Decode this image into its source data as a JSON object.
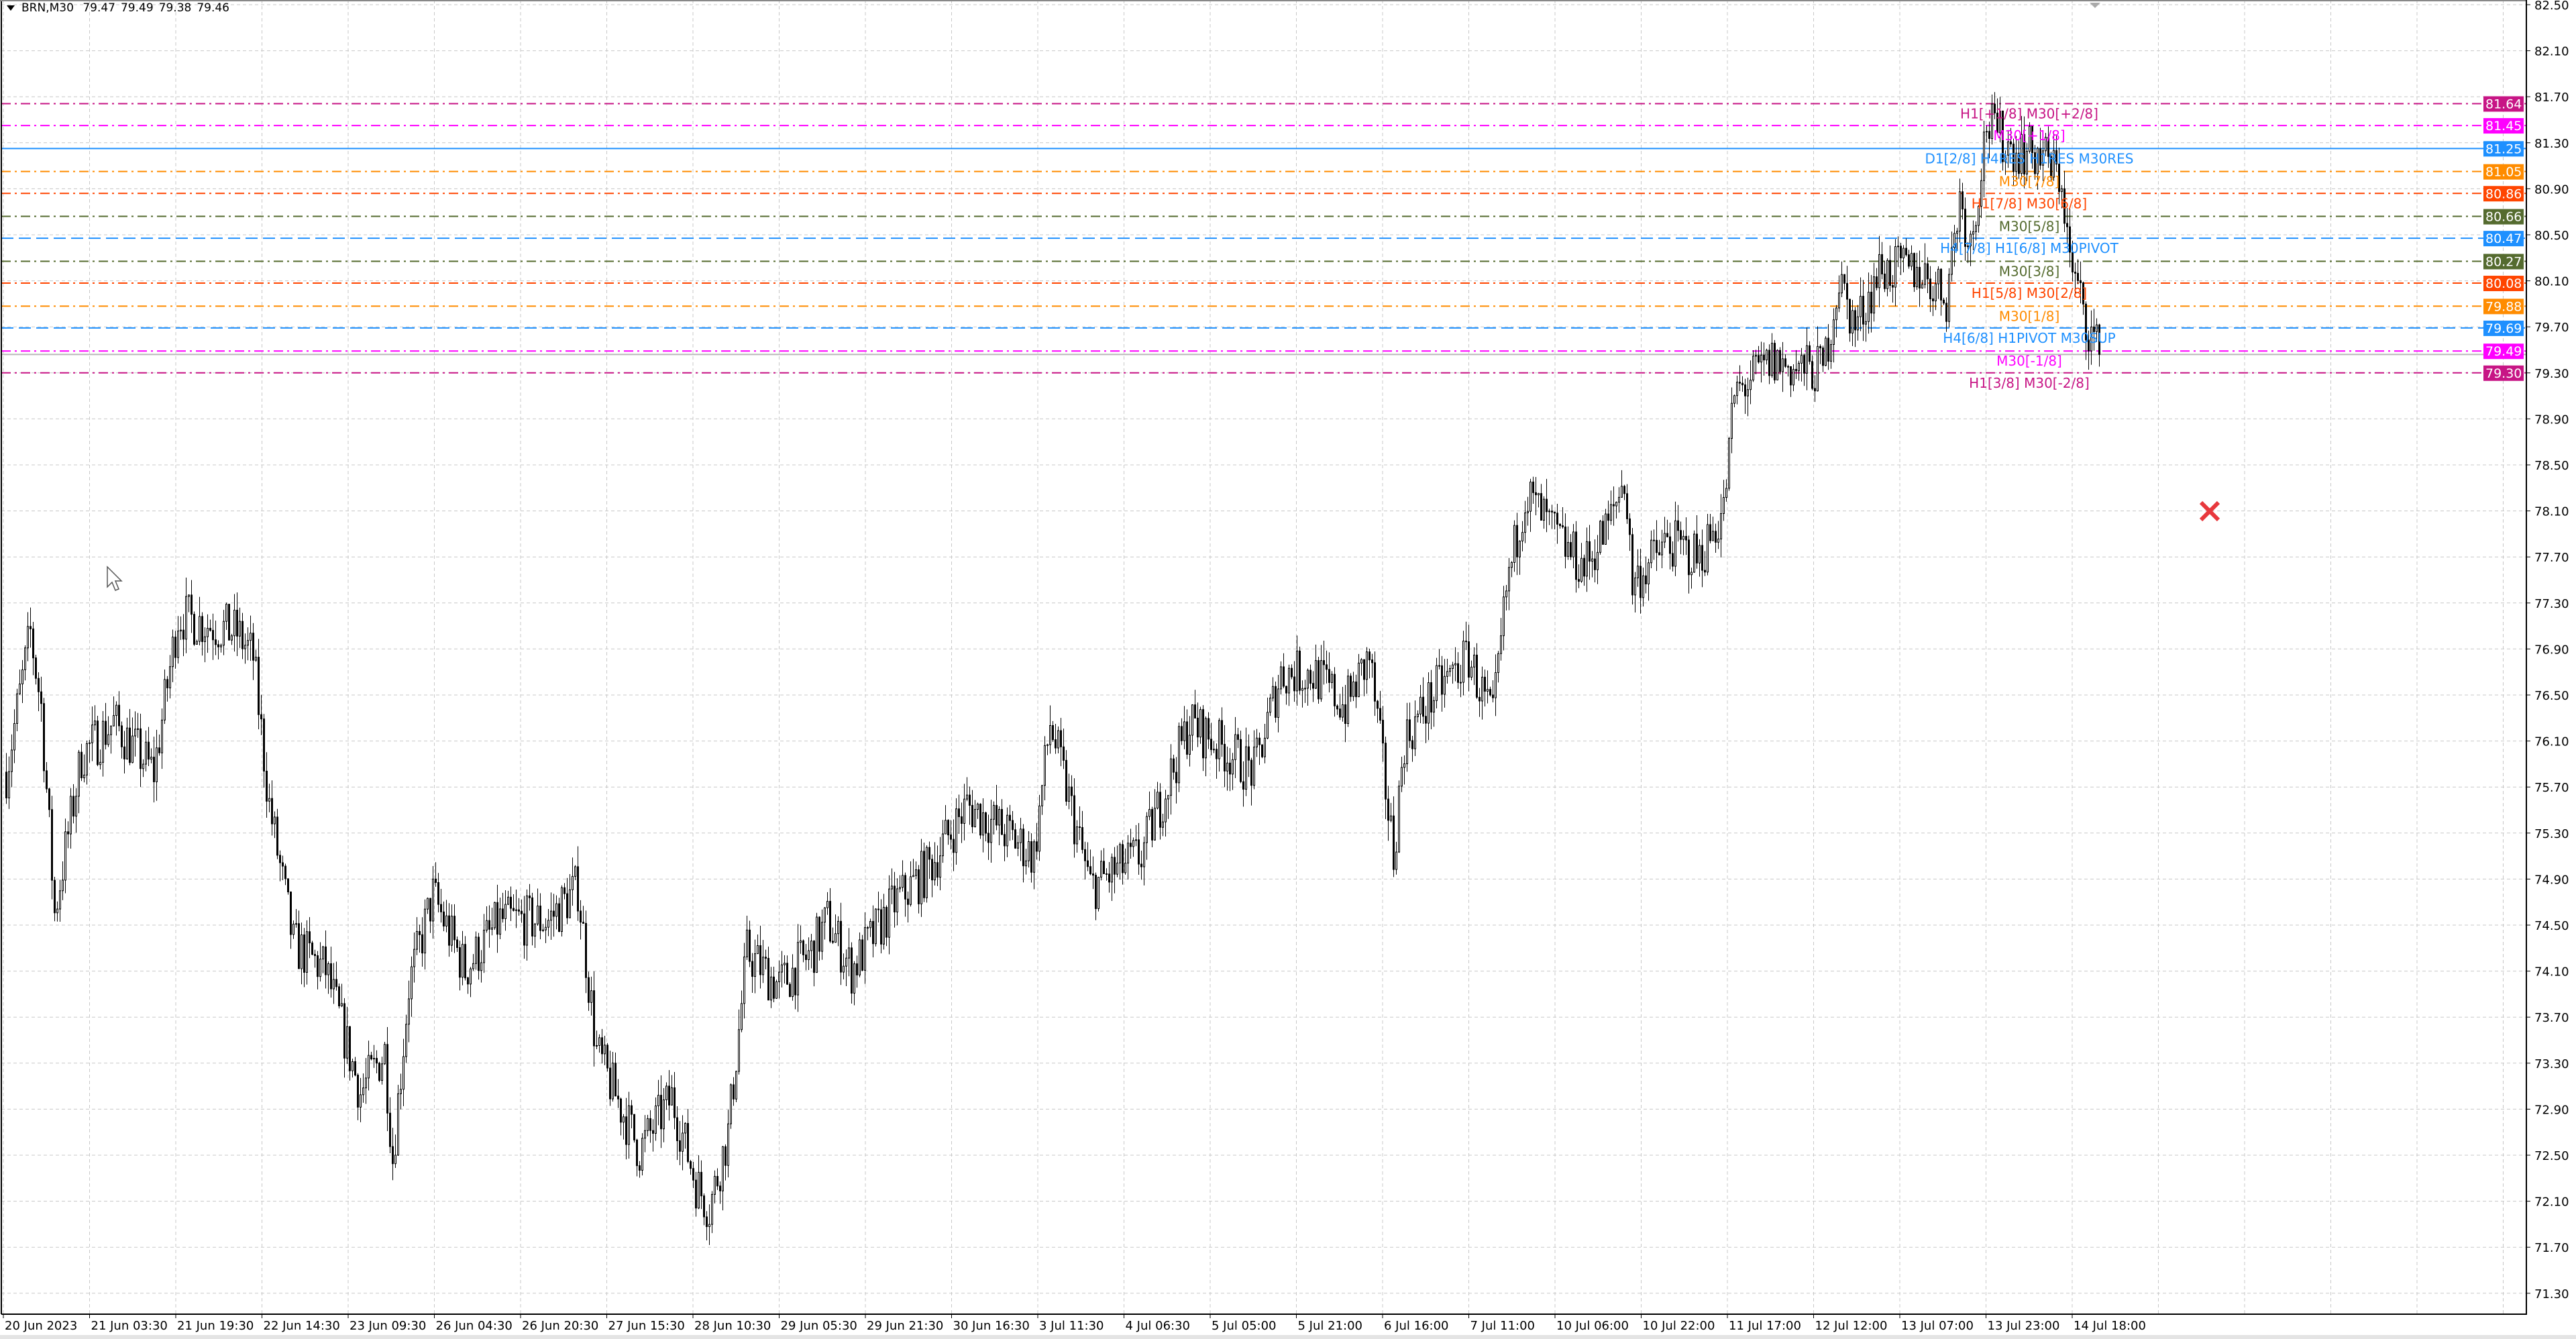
{
  "header": {
    "symbol": "BRN,M30",
    "open": "79.47",
    "high": "79.49",
    "low": "79.38",
    "close": "79.46"
  },
  "chart_data": {
    "type": "candlestick",
    "symbol": "BRN",
    "timeframe": "M30",
    "ylim": [
      71.12,
      82.5
    ],
    "grid": true,
    "y_ticks": [
      "82.50",
      "82.10",
      "81.70",
      "81.30",
      "80.90",
      "80.50",
      "80.10",
      "79.70",
      "79.30",
      "78.90",
      "78.50",
      "78.10",
      "77.70",
      "77.30",
      "76.90",
      "76.50",
      "76.10",
      "75.70",
      "75.30",
      "74.90",
      "74.50",
      "74.10",
      "73.70",
      "73.30",
      "72.90",
      "72.50",
      "72.10",
      "71.70",
      "71.30"
    ],
    "x_ticks": [
      "20 Jun 2023",
      "21 Jun 03:30",
      "21 Jun 19:30",
      "22 Jun 14:30",
      "23 Jun 09:30",
      "26 Jun 04:30",
      "26 Jun 20:30",
      "27 Jun 15:30",
      "28 Jun 10:30",
      "29 Jun 05:30",
      "29 Jun 21:30",
      "30 Jun 16:30",
      "3 Jul 11:30",
      "4 Jul 06:30",
      "5 Jul 05:00",
      "5 Jul 21:00",
      "6 Jul 16:00",
      "7 Jul 11:00",
      "10 Jul 06:00",
      "10 Jul 22:00",
      "11 Jul 17:00",
      "12 Jul 12:00",
      "13 Jul 07:00",
      "13 Jul 23:00",
      "14 Jul 18:00"
    ],
    "price_path": [
      [
        0,
        75.83
      ],
      [
        9,
        77.04
      ],
      [
        13,
        76.4
      ],
      [
        18,
        74.6
      ],
      [
        28,
        75.97
      ],
      [
        40,
        76.26
      ],
      [
        55,
        75.83
      ],
      [
        64,
        77.19
      ],
      [
        86,
        77.04
      ],
      [
        92,
        76.83
      ],
      [
        98,
        75.54
      ],
      [
        107,
        74.33
      ],
      [
        119,
        74.11
      ],
      [
        132,
        73.04
      ],
      [
        141,
        73.4
      ],
      [
        144,
        72.47
      ],
      [
        150,
        73.97
      ],
      [
        159,
        74.76
      ],
      [
        171,
        74.11
      ],
      [
        184,
        74.54
      ],
      [
        202,
        74.54
      ],
      [
        213,
        74.83
      ],
      [
        220,
        73.4
      ],
      [
        236,
        72.54
      ],
      [
        248,
        73.0
      ],
      [
        257,
        72.26
      ],
      [
        262,
        72.04
      ],
      [
        269,
        72.69
      ],
      [
        276,
        74.26
      ],
      [
        288,
        73.97
      ],
      [
        300,
        74.26
      ],
      [
        306,
        74.54
      ],
      [
        315,
        74.11
      ],
      [
        331,
        74.69
      ],
      [
        343,
        74.97
      ],
      [
        358,
        75.54
      ],
      [
        367,
        75.4
      ],
      [
        383,
        75.11
      ],
      [
        389,
        76.26
      ],
      [
        398,
        75.4
      ],
      [
        404,
        74.83
      ],
      [
        423,
        75.11
      ],
      [
        441,
        76.26
      ],
      [
        465,
        75.83
      ],
      [
        475,
        76.69
      ],
      [
        487,
        76.69
      ],
      [
        499,
        76.4
      ],
      [
        508,
        76.83
      ],
      [
        517,
        75.11
      ],
      [
        521,
        76.11
      ],
      [
        533,
        76.54
      ],
      [
        545,
        76.83
      ],
      [
        554,
        76.26
      ],
      [
        559,
        77.4
      ],
      [
        566,
        78.26
      ],
      [
        579,
        77.83
      ],
      [
        588,
        77.61
      ],
      [
        597,
        77.97
      ],
      [
        603,
        78.4
      ],
      [
        606,
        77.47
      ],
      [
        619,
        77.83
      ],
      [
        631,
        77.69
      ],
      [
        640,
        78.11
      ],
      [
        644,
        79.11
      ],
      [
        658,
        79.4
      ],
      [
        668,
        79.33
      ],
      [
        677,
        79.33
      ],
      [
        683,
        80.11
      ],
      [
        689,
        79.69
      ],
      [
        698,
        80.19
      ],
      [
        713,
        80.19
      ],
      [
        723,
        79.97
      ],
      [
        728,
        80.83
      ],
      [
        732,
        80.4
      ],
      [
        738,
        81.47
      ],
      [
        747,
        81.26
      ],
      [
        759,
        81.19
      ],
      [
        766,
        80.97
      ],
      [
        769,
        80.26
      ],
      [
        775,
        79.76
      ],
      [
        780,
        79.46
      ]
    ],
    "bid": 79.46,
    "levels": [
      {
        "price": 81.64,
        "label": "H1[+1/8] M30[+2/8]",
        "color": "#c71585",
        "style": "dashdot"
      },
      {
        "price": 81.45,
        "label": "M30[+1/8]",
        "color": "#ff00ff",
        "style": "dashdot"
      },
      {
        "price": 81.25,
        "label": "D1[2/8] H4RES H1RES M30RES",
        "color": "#1e90ff",
        "style": "solid"
      },
      {
        "price": 81.05,
        "label": "M30[7/8]",
        "color": "#ff8c00",
        "style": "dashdot"
      },
      {
        "price": 80.86,
        "label": "H1[7/8] M30[6/8]",
        "color": "#ff4500",
        "style": "dashdot"
      },
      {
        "price": 80.66,
        "label": "M30[5/8]",
        "color": "#556b2f",
        "style": "dashdot"
      },
      {
        "price": 80.47,
        "label": "H4[7/8] H1[6/8] M30PIVOT",
        "color": "#1e90ff",
        "style": "dash"
      },
      {
        "price": 80.27,
        "label": "M30[3/8]",
        "color": "#556b2f",
        "style": "dashdot"
      },
      {
        "price": 80.08,
        "label": "H1[5/8] M30[2/8]",
        "color": "#ff4500",
        "style": "dashdot"
      },
      {
        "price": 79.88,
        "label": "M30[1/8]",
        "color": "#ff8c00",
        "style": "dashdot"
      },
      {
        "price": 79.69,
        "label": "H4[6/8] H1PIVOT M30SUP",
        "color": "#1e90ff",
        "style": "dash"
      },
      {
        "price": 79.49,
        "label": "M30[-1/8]",
        "color": "#ff00ff",
        "style": "dashdot"
      },
      {
        "price": 79.3,
        "label": "H1[3/8] M30[-2/8]",
        "color": "#c71585",
        "style": "dashdot"
      }
    ],
    "level_price_labels": [
      "81.64",
      "81.45",
      "81.25",
      "81.05",
      "80.86",
      "80.66",
      "80.47",
      "80.27",
      "80.08",
      "79.88",
      "79.69",
      "79.49",
      "79.30"
    ]
  },
  "icons": {
    "close_marker": "red-x-icon",
    "cursor": "mouse-pointer-icon",
    "shift_marker": "chart-shift-triangle-icon",
    "dropdown": "triangle-down-icon"
  }
}
